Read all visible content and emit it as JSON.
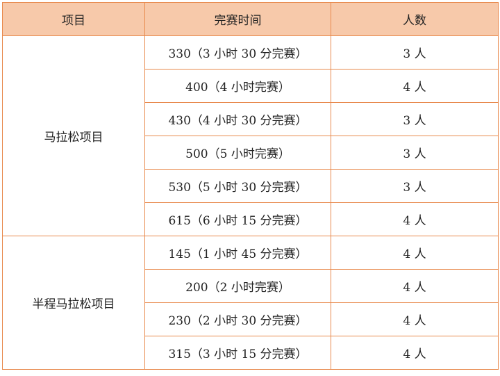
{
  "headers": [
    "项目",
    "完赛时间",
    "人数"
  ],
  "groups": [
    {
      "name": "马拉松项目",
      "rows": [
        {
          "time": "330（3 小时 30 分完赛）",
          "count": "3 人"
        },
        {
          "time": "400（4 小时完赛）",
          "count": "4 人"
        },
        {
          "time": "430（4 小时 30 分完赛）",
          "count": "3 人"
        },
        {
          "time": "500（5 小时完赛）",
          "count": "3 人"
        },
        {
          "time": "530（5 小时 30 分完赛）",
          "count": "3 人"
        },
        {
          "time": "615（6 小时 15 分完赛）",
          "count": "4 人"
        }
      ]
    },
    {
      "name": "半程马拉松项目",
      "rows": [
        {
          "time": "145（1 小时 45 分完赛）",
          "count": "4 人"
        },
        {
          "time": "200（2 小时完赛）",
          "count": "4 人"
        },
        {
          "time": "230（2 小时 30 分完赛）",
          "count": "4 人"
        },
        {
          "time": "315（3 小时 15 分完赛）",
          "count": "4 人"
        }
      ]
    }
  ],
  "colors": {
    "header_bg": "#f7c9aa",
    "border": "#e8894c"
  }
}
